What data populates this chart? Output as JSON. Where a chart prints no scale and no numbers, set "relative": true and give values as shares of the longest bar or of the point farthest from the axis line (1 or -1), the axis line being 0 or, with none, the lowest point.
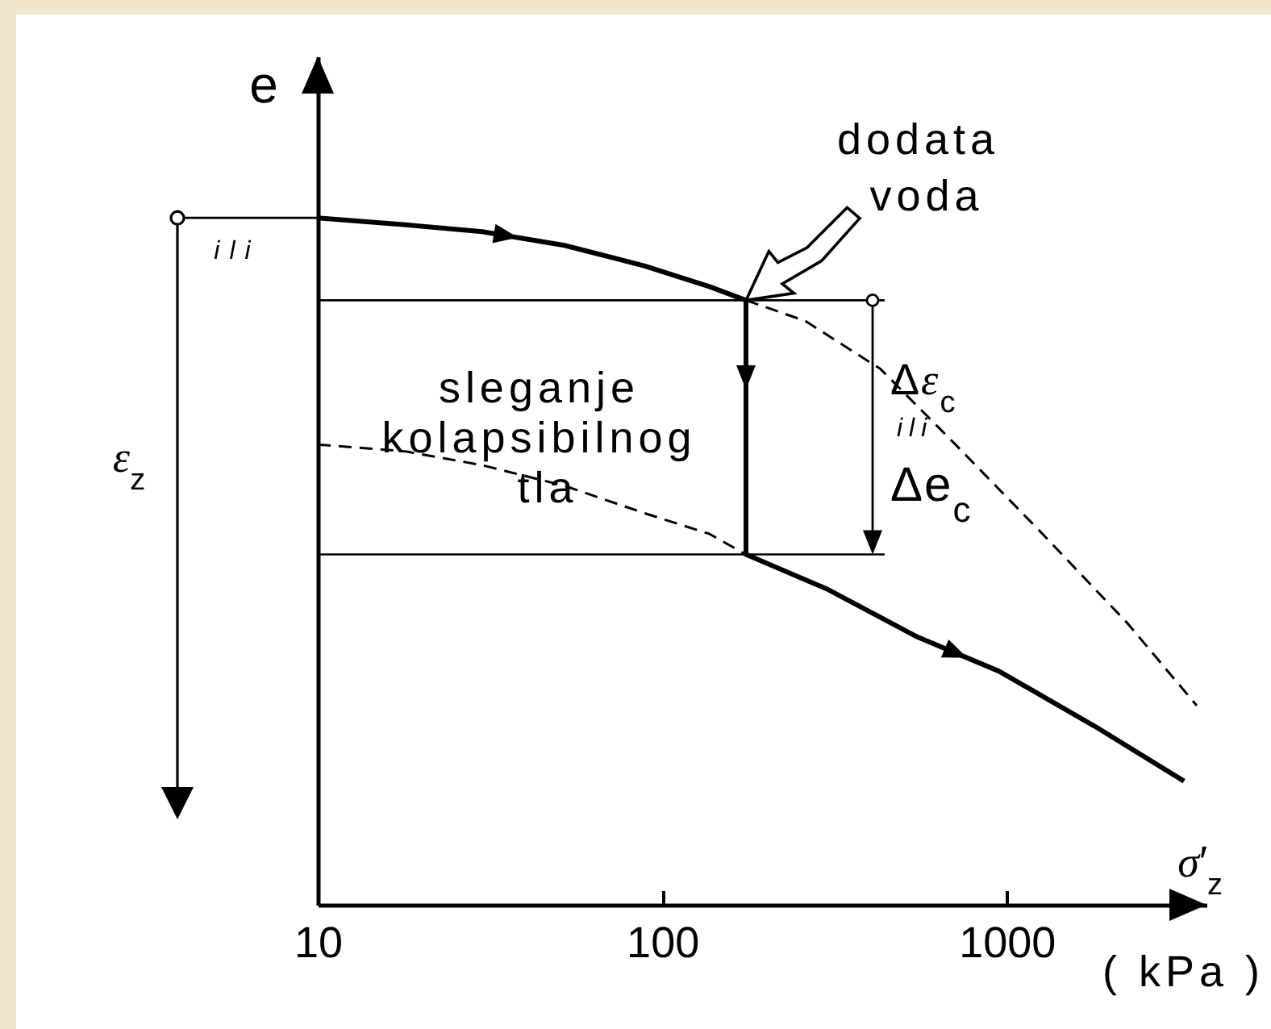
{
  "chart_data": {
    "type": "line",
    "relative": true,
    "log": "x",
    "xlabel": "σ′$_{z}$",
    "ylabel": "e",
    "xlim": [
      10,
      3800
    ],
    "xticks": [
      10,
      100,
      1000
    ],
    "series": [
      {
        "color": "#000000",
        "line_style": "solid",
        "x": [
          10,
          18,
          30,
          52,
          89,
          137,
          175,
          175,
          300,
          550,
          950,
          1800,
          3270
        ],
        "values": [
          1,
          0.99,
          0.98,
          0.96,
          0.93,
          0.9,
          0.88,
          0.51,
          0.46,
          0.39,
          0.34,
          0.26,
          0.18
        ]
      },
      {
        "color": "#000000",
        "line_style": "dashed",
        "x": [
          175,
          260,
          430,
          710,
          1270,
          2240,
          3560
        ],
        "values": [
          0.88,
          0.85,
          0.78,
          0.67,
          0.54,
          0.41,
          0.29
        ]
      },
      {
        "color": "#000000",
        "line_style": "dashed",
        "x": [
          10,
          18,
          30,
          52,
          89,
          137,
          175
        ],
        "values": [
          0.67,
          0.66,
          0.64,
          0.61,
          0.57,
          0.54,
          0.51
        ]
      },
      {
        "color": "#000000",
        "line_style": "solid",
        "x": [
          10,
          442
        ],
        "values": [
          0.88,
          0.88
        ]
      },
      {
        "color": "#000000",
        "line_style": "solid",
        "x": [
          10,
          442
        ],
        "values": [
          0.51,
          0.51
        ]
      }
    ],
    "annotations": [
      {
        "text": "dodata voda",
        "x": 175,
        "y": 0.88
      },
      "ili",
      "ε$_{z}$",
      {
        "text": "sleganje kolapsibilnog tla",
        "x": 175,
        "y": 0.7
      },
      "Δε$_{c}$",
      "ili",
      "Δe$_{c}$",
      "( kPa )"
    ]
  }
}
